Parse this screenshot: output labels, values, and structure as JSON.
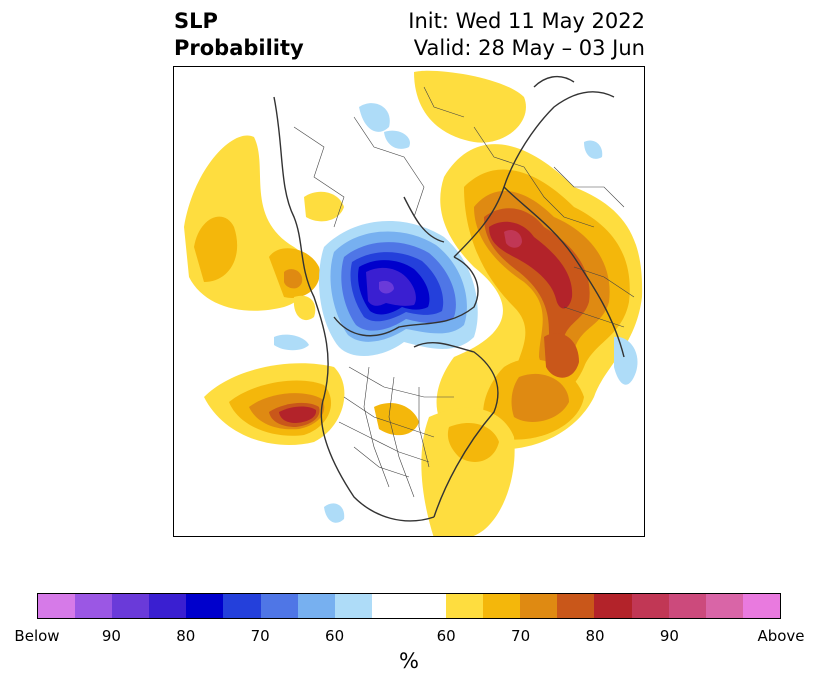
{
  "title": {
    "left_line1": "SLP",
    "left_line2": "Probability",
    "right_line1": "Init: Wed 11 May 2022",
    "right_line2": "Valid: 28 May – 03 Jun"
  },
  "colorbar": {
    "unit": "%",
    "below_colors": [
      "#d67ae8",
      "#9b57e4",
      "#6a3ad9",
      "#3a1fd1",
      "#0000cc",
      "#2440db",
      "#4f76e6",
      "#77b0f0",
      "#aedcf8"
    ],
    "neutral_color": "#ffffff",
    "above_colors": [
      "#fedd3f",
      "#f4b70b",
      "#df8a12",
      "#c9571a",
      "#b3232a",
      "#c13755",
      "#cc4a7c",
      "#d965a7",
      "#e97adf"
    ],
    "tick_labels": [
      "Below",
      "90",
      "80",
      "70",
      "60",
      "60",
      "70",
      "80",
      "90",
      "Above"
    ]
  },
  "map": {
    "projection": "polar-stereographic",
    "features": [
      "coastlines",
      "country-borders",
      "us-state-borders"
    ]
  }
}
